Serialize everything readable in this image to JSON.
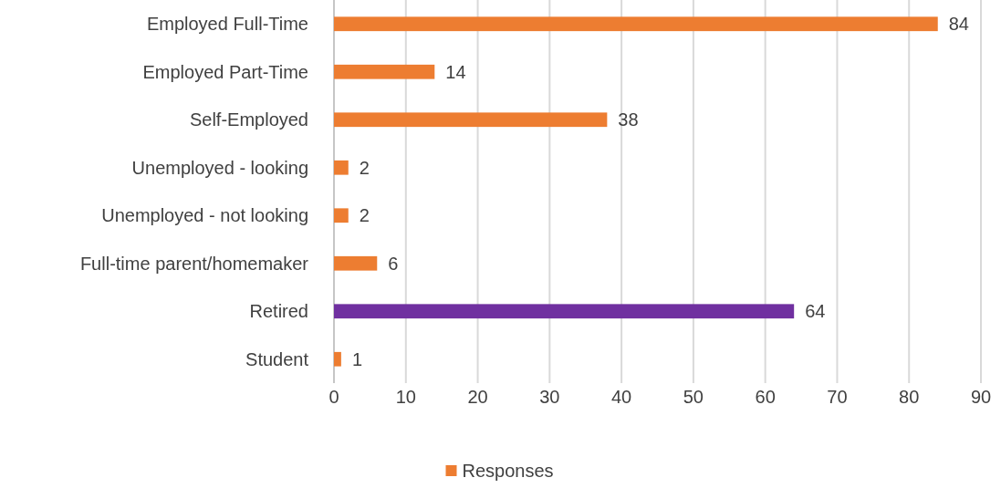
{
  "chart_data": {
    "type": "bar",
    "orientation": "horizontal",
    "categories": [
      "Employed Full-Time",
      "Employed Part-Time",
      "Self-Employed",
      "Unemployed - looking",
      "Unemployed - not looking",
      "Full-time parent/homemaker",
      "Retired",
      "Student"
    ],
    "series": [
      {
        "name": "Responses",
        "color": "#ed7d31",
        "values": [
          84,
          14,
          38,
          2,
          2,
          6,
          64,
          1
        ],
        "colors": [
          "#ed7d31",
          "#ed7d31",
          "#ed7d31",
          "#ed7d31",
          "#ed7d31",
          "#ed7d31",
          "#7030a0",
          "#ed7d31"
        ]
      }
    ],
    "xlim": [
      0,
      90
    ],
    "xticks": [
      0,
      10,
      20,
      30,
      40,
      50,
      60,
      70,
      80,
      90
    ],
    "grid": "x",
    "legend": "bottom",
    "data_labels": true
  }
}
